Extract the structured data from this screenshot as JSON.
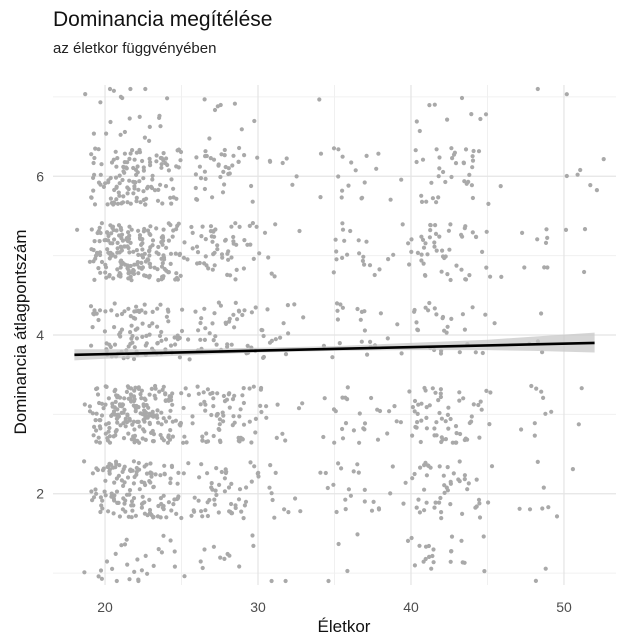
{
  "chart_data": {
    "type": "scatter",
    "title": "Dominancia megítélése",
    "subtitle": "az életkor függvényében",
    "xlabel": "Életkor",
    "ylabel": "Dominancia átlagpontszám",
    "xlim": [
      16.6,
      53.4
    ],
    "ylim": [
      0.85,
      7.15
    ],
    "x_ticks": [
      20,
      30,
      40,
      50
    ],
    "y_ticks": [
      2,
      4,
      6
    ],
    "grid": true,
    "point_color": "#a9a9a9",
    "fit_line_color": "#000000",
    "ci_band_color": "#c8c8c8",
    "fit_line": {
      "x": [
        18,
        52
      ],
      "y": [
        3.75,
        3.9
      ]
    },
    "ci_band": {
      "x": [
        18,
        20,
        25,
        30,
        35,
        40,
        45,
        48,
        52
      ],
      "lower": [
        3.68,
        3.7,
        3.74,
        3.78,
        3.8,
        3.81,
        3.81,
        3.8,
        3.78
      ],
      "upper": [
        3.82,
        3.82,
        3.82,
        3.84,
        3.86,
        3.9,
        3.94,
        3.98,
        4.03
      ]
    },
    "age_groups": [
      {
        "age": 18.5,
        "n": [
          1,
          1,
          1,
          0,
          1,
          0,
          1
        ]
      },
      {
        "age": 19.5,
        "n": [
          3,
          16,
          22,
          10,
          22,
          16,
          2
        ]
      },
      {
        "age": 20.5,
        "n": [
          4,
          28,
          40,
          18,
          40,
          25,
          4
        ]
      },
      {
        "age": 21.5,
        "n": [
          6,
          30,
          44,
          22,
          44,
          30,
          6
        ]
      },
      {
        "age": 22.5,
        "n": [
          6,
          28,
          40,
          20,
          40,
          26,
          5
        ]
      },
      {
        "age": 23.5,
        "n": [
          4,
          22,
          32,
          16,
          30,
          20,
          3
        ]
      },
      {
        "age": 24.5,
        "n": [
          3,
          16,
          22,
          12,
          20,
          14,
          1
        ]
      },
      {
        "age": 25.5,
        "n": [
          1,
          6,
          8,
          5,
          6,
          4,
          0
        ]
      },
      {
        "age": 26.5,
        "n": [
          3,
          12,
          16,
          10,
          14,
          10,
          2
        ]
      },
      {
        "age": 27.5,
        "n": [
          3,
          14,
          20,
          12,
          16,
          12,
          3
        ]
      },
      {
        "age": 28.5,
        "n": [
          3,
          12,
          16,
          10,
          14,
          8,
          2
        ]
      },
      {
        "age": 29.5,
        "n": [
          2,
          8,
          10,
          8,
          8,
          4,
          1
        ]
      },
      {
        "age": 30.5,
        "n": [
          1,
          6,
          6,
          8,
          4,
          2,
          0
        ]
      },
      {
        "age": 31.5,
        "n": [
          1,
          4,
          4,
          6,
          2,
          2,
          0
        ]
      },
      {
        "age": 32.5,
        "n": [
          0,
          2,
          2,
          2,
          1,
          2,
          0
        ]
      },
      {
        "age": 34.5,
        "n": [
          1,
          4,
          4,
          2,
          1,
          3,
          1
        ]
      },
      {
        "age": 35.5,
        "n": [
          2,
          6,
          8,
          6,
          8,
          6,
          0
        ]
      },
      {
        "age": 36.5,
        "n": [
          1,
          6,
          6,
          6,
          6,
          5,
          0
        ]
      },
      {
        "age": 37.5,
        "n": [
          0,
          4,
          4,
          4,
          4,
          3,
          0
        ]
      },
      {
        "age": 38.5,
        "n": [
          0,
          2,
          3,
          2,
          2,
          1,
          0
        ]
      },
      {
        "age": 39.5,
        "n": [
          1,
          2,
          3,
          2,
          3,
          1,
          0
        ]
      },
      {
        "age": 40.5,
        "n": [
          6,
          10,
          14,
          6,
          12,
          6,
          2
        ]
      },
      {
        "age": 41.5,
        "n": [
          6,
          12,
          16,
          8,
          12,
          8,
          2
        ]
      },
      {
        "age": 42.5,
        "n": [
          4,
          10,
          14,
          6,
          10,
          8,
          1
        ]
      },
      {
        "age": 43.5,
        "n": [
          3,
          8,
          10,
          4,
          8,
          8,
          2
        ]
      },
      {
        "age": 44.5,
        "n": [
          2,
          6,
          6,
          4,
          6,
          6,
          2
        ]
      },
      {
        "age": 45.5,
        "n": [
          0,
          2,
          2,
          1,
          2,
          2,
          0
        ]
      },
      {
        "age": 47.5,
        "n": [
          0,
          2,
          2,
          1,
          2,
          0,
          0
        ]
      },
      {
        "age": 48.5,
        "n": [
          2,
          4,
          6,
          3,
          6,
          0,
          1
        ]
      },
      {
        "age": 49.5,
        "n": [
          0,
          1,
          1,
          0,
          0,
          0,
          0
        ]
      },
      {
        "age": 50.5,
        "n": [
          0,
          1,
          1,
          0,
          1,
          2,
          1
        ]
      },
      {
        "age": 51.5,
        "n": [
          0,
          0,
          1,
          0,
          2,
          2,
          0
        ]
      },
      {
        "age": 52.5,
        "n": [
          0,
          0,
          0,
          0,
          0,
          2,
          0
        ]
      }
    ],
    "score_bands": [
      1.15,
      2.05,
      3.0,
      4.05,
      5.05,
      6.0,
      6.8
    ]
  }
}
